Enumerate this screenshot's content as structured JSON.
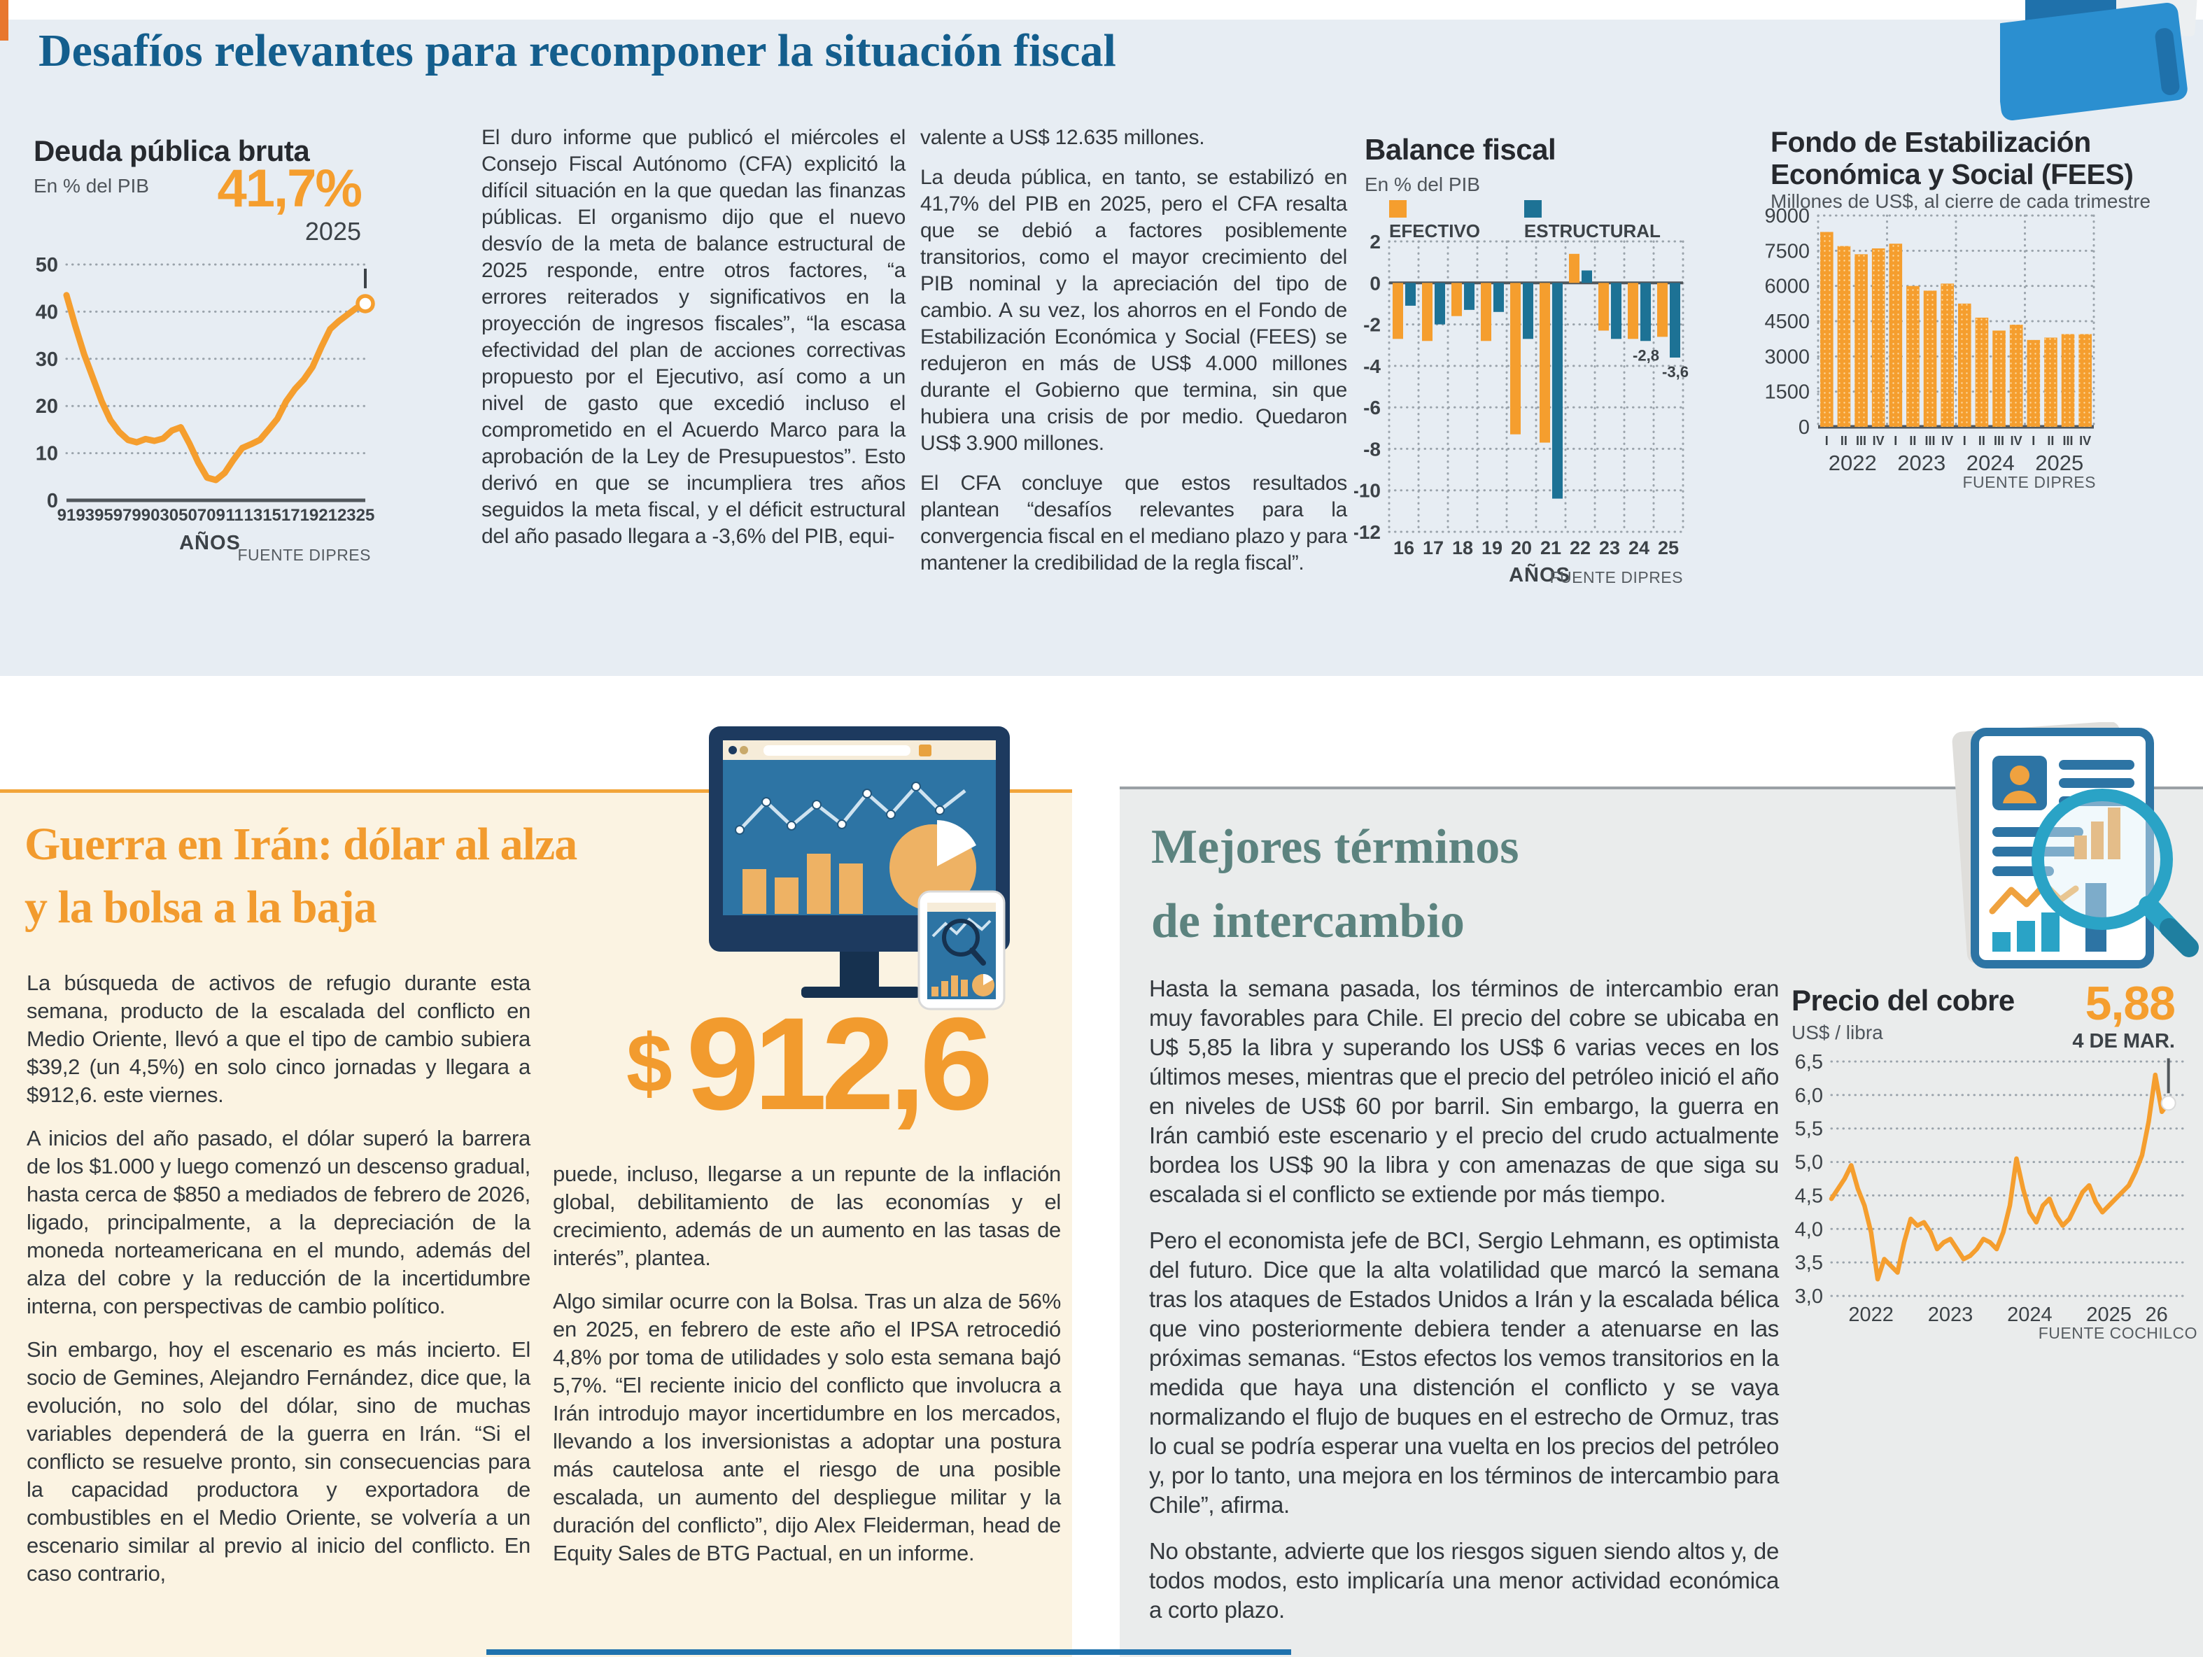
{
  "page": {
    "main_title": "Desafíos relevantes para recomponer la situación fiscal"
  },
  "articles": {
    "col1": [
      "El duro informe que publicó el miércoles el Consejo Fiscal Autónomo (CFA) explicitó la difícil situación en la que quedan las finanzas públicas. El organismo dijo que el nuevo desvío de la meta de balance estructural de 2025 responde, entre otros factores, “a errores reiterados y significativos en la proyección de ingresos fiscales”, “la escasa efectividad del plan de acciones correctivas propuesto por el Ejecutivo, así como a un nivel de gasto que excedió incluso el comprometido en el Acuerdo Marco para la aprobación de la Ley de Presupuestos”. Esto derivó en que se incumpliera tres años seguidos la meta fiscal, y el déficit estructural del año pasado llegara a -3,6% del PIB, equi-"
    ],
    "col2": [
      "valente a US$ 12.635 millones.",
      "La deuda pública, en tanto, se estabilizó en 41,7% del PIB en 2025, pero el CFA resalta que se debió a factores posiblemente transitorios, como el mayor crecimiento del PIB nominal y la apreciación del tipo de cambio. A su vez, los ahorros en el Fondo de Estabilización Económica y Social (FEES) se redujeron en más de US$ 4.000 millones durante el Gobierno que termina, sin que hubiera una crisis de por medio. Quedaron US$ 3.900 millones.",
      "El CFA concluye que estos resultados plantean “desafíos relevantes para la convergencia fiscal en el mediano plazo y para mantener la credibilidad de la regla fiscal”."
    ]
  },
  "guerra": {
    "heading_line1": "Guerra en Irán: dólar al alza",
    "heading_line2": "y la bolsa a la baja",
    "big_currency": "$",
    "big_value": "912,6",
    "col1_paragraphs": [
      "La búsqueda de activos de refugio durante esta semana, producto de la escalada del conflicto en Medio Oriente, llevó a que el tipo de cambio subiera $39,2 (un 4,5%) en solo cinco jornadas y llegara a $912,6. este viernes.",
      "A inicios del año pasado, el dólar superó la barrera de los $1.000 y luego comenzó un descenso gradual, hasta cerca de $850 a mediados de febrero de 2026, ligado, principalmente, a la depreciación de la moneda norteamericana en el mundo, además del alza del cobre y la reducción de la incertidumbre interna, con perspectivas de cambio político.",
      "Sin embargo, hoy el escenario es más incierto. El socio de Gemines, Alejandro Fernández, dice que, la evolución, no solo del dólar, sino de muchas variables dependerá de la guerra en Irán. “Si el conflicto se resuelve pronto, sin consecuencias para la capacidad productora y exportadora de combustibles en el Medio Oriente, se volvería a un escenario similar al previo al inicio del conflicto. En caso contrario,"
    ],
    "col2_paragraphs": [
      "puede, incluso, llegarse a un repunte de la inflación global, debilitamiento de las economías y el crecimiento, además de un aumento en las tasas de interés”, plantea.",
      "Algo similar ocurre con la Bolsa. Tras un alza de 56% en 2025, en febrero de este año el IPSA retrocedió 4,8% por toma de utilidades y solo esta semana bajó 5,7%. “El reciente inicio del conflicto que involucra a Irán introdujo mayor incertidumbre en los mercados, llevando a los inversionistas a adoptar una postura más cautelosa ante el riesgo de una posible escalada, un aumento del despliegue militar y la duración del conflicto”, dijo Alex Fleiderman, head de Equity Sales de BTG Pactual, en un informe."
    ]
  },
  "mejores": {
    "heading_line1": "Mejores términos",
    "heading_line2": "de intercambio",
    "paragraphs": [
      "Hasta la semana pasada, los términos de intercambio eran muy favorables para Chile. El precio del cobre se ubicaba en U$ 5,85 la libra y superando los US$ 6 varias veces en los últimos meses, mientras que el precio del petróleo inició el año en niveles de US$ 60 por barril. Sin embargo, la guerra en Irán cambió este escenario y el precio del crudo actualmente bordea los US$ 90 la libra y con amenazas de que siga su escalada si el conflicto se extiende por más tiempo.",
      "Pero el economista jefe de BCI, Sergio Lehmann, es optimista del futuro. Dice que la alta volatilidad que marcó la semana tras los ataques de Estados Unidos a Irán y la escalada bélica que vino posteriormente debiera tender a atenuarse en las próximas semanas. “Estos efectos los vemos transitorios en la medida que haya una distención el conflicto y se vaya normalizando el flujo de buques en el estrecho de Ormuz, tras lo cual se podría esperar una vuelta en los precios del petróleo y, por lo tanto, una mejora en los términos de intercambio para Chile”, afirma.",
      "No obstante, advierte que los riesgos siguen siendo altos y, de todos modos, esto implicaría una menor actividad económica a corto plazo."
    ]
  },
  "icons": [
    "folder-icon",
    "dashboard-monitor-icon",
    "report-magnifier-icon"
  ],
  "colors": {
    "accent_orange": "#f59e2e",
    "teal_bar": "#1d7295",
    "headline_blue": "#145e8d",
    "guerra_orange": "#f29b2e",
    "mejores_teal": "#5c837f",
    "panel_blue": "#e7edf3",
    "panel_cream": "#fbf3e2",
    "panel_gray": "#eaecec"
  },
  "chart_data": [
    {
      "id": "deuda",
      "type": "line",
      "title": "Deuda pública bruta",
      "subtitle": "En % del PIB",
      "xlabel": "AÑOS",
      "source": "FUENTE DIPRES",
      "color": "#f59e2e",
      "grid": true,
      "ylim": [
        0,
        50
      ],
      "y_ticks": [
        50,
        40,
        30,
        20,
        10,
        0
      ],
      "x_tick_labels": [
        "91",
        "93",
        "95",
        "97",
        "99",
        "03",
        "05",
        "07",
        "09",
        "11",
        "13",
        "15",
        "17",
        "19",
        "21",
        "23",
        "25"
      ],
      "years_range": "1991-2025",
      "values": [
        43.5,
        37,
        31,
        26,
        21,
        17,
        14.5,
        12.8,
        12.3,
        13,
        12.6,
        13.1,
        14.8,
        15.5,
        12,
        8,
        4.8,
        4.3,
        5.8,
        8.6,
        11.1,
        11.9,
        12.8,
        15,
        17.3,
        21,
        23.6,
        25.6,
        28.3,
        32.5,
        36.3,
        38,
        39.4,
        40.8,
        41.7
      ],
      "callout": {
        "value": "41,7%",
        "year": "2025"
      }
    },
    {
      "id": "balance",
      "type": "bar",
      "title": "Balance fiscal",
      "subtitle": "En % del PIB",
      "xlabel": "AÑOS",
      "source": "FUENTE DIPRES",
      "grid": true,
      "legend_position": "top",
      "ylim": [
        -12,
        2
      ],
      "y_ticks": [
        2,
        0,
        -2,
        -4,
        -6,
        -8,
        -10,
        -12
      ],
      "categories": [
        "16",
        "17",
        "18",
        "19",
        "20",
        "21",
        "22",
        "23",
        "24",
        "25"
      ],
      "series": [
        {
          "name": "EFECTIVO",
          "color": "#f59e2e",
          "values": [
            -2.7,
            -2.8,
            -1.6,
            -2.8,
            -7.3,
            -7.7,
            1.4,
            -2.3,
            -2.7,
            -2.6
          ]
        },
        {
          "name": "ESTRUCTURAL",
          "color": "#1d7295",
          "values": [
            -1.1,
            -2,
            -1.3,
            -1.4,
            -2.7,
            -10.4,
            0.6,
            -2.7,
            -2.8,
            -3.6
          ]
        }
      ],
      "annotations": [
        {
          "text": "-2,8",
          "group": 8,
          "series": 1
        },
        {
          "text": "-3,6",
          "group": 9,
          "series": 1
        }
      ]
    },
    {
      "id": "fees",
      "type": "bar",
      "title_line1": "Fondo de Estabilización",
      "title_line2": "Económica y Social (FEES)",
      "subtitle": "Millones de US$, al cierre de cada trimestre",
      "source": "FUENTE DIPRES",
      "color": "#f59e2e",
      "grid": true,
      "ylim": [
        0,
        9000
      ],
      "y_ticks": [
        9000,
        7500,
        6000,
        4500,
        3000,
        1500,
        0
      ],
      "quarters": [
        "I",
        "II",
        "III",
        "IV"
      ],
      "year_groups": [
        "2022",
        "2023",
        "2024",
        "2025"
      ],
      "values": [
        8300,
        7700,
        7350,
        7600,
        7800,
        6000,
        5800,
        6100,
        5250,
        4650,
        4100,
        4350,
        3700,
        3800,
        3950,
        3950
      ]
    },
    {
      "id": "cobre",
      "type": "line",
      "title": "Precio del cobre",
      "subtitle": "US$ / libra",
      "source": "FUENTE COCHILCO",
      "color": "#f59e2e",
      "grid": true,
      "ylim": [
        3,
        6.5
      ],
      "y_ticks": [
        {
          "label": "6,5",
          "v": 6.5
        },
        {
          "label": "6,0",
          "v": 6
        },
        {
          "label": "5,5",
          "v": 5.5
        },
        {
          "label": "5,0",
          "v": 5
        },
        {
          "label": "4,5",
          "v": 4.5
        },
        {
          "label": "4,0",
          "v": 4
        },
        {
          "label": "3,5",
          "v": 3.5
        },
        {
          "label": "3,0",
          "v": 3
        }
      ],
      "x_span_years": 4.5,
      "x_labels": [
        {
          "label": "2022",
          "t": 0.5
        },
        {
          "label": "2023",
          "t": 1.5
        },
        {
          "label": "2024",
          "t": 2.5
        },
        {
          "label": "2025",
          "t": 3.5
        },
        {
          "label": "26",
          "t": 4.1
        }
      ],
      "points_per_year": 12,
      "values": [
        4.45,
        4.6,
        4.75,
        4.95,
        4.6,
        4.35,
        3.95,
        3.25,
        3.55,
        3.45,
        3.35,
        3.8,
        4.15,
        4.05,
        4.1,
        3.95,
        3.7,
        3.8,
        3.85,
        3.7,
        3.55,
        3.6,
        3.7,
        3.85,
        3.8,
        3.7,
        3.95,
        4.35,
        5.05,
        4.6,
        4.25,
        4.1,
        4.35,
        4.45,
        4.2,
        4.05,
        4.15,
        4.35,
        4.55,
        4.65,
        4.4,
        4.25,
        4.35,
        4.45,
        4.55,
        4.65,
        4.85,
        5.1,
        5.6,
        6.3,
        5.75,
        5.88
      ],
      "callout": {
        "value": "5,88",
        "date": "4 DE MAR."
      }
    }
  ]
}
